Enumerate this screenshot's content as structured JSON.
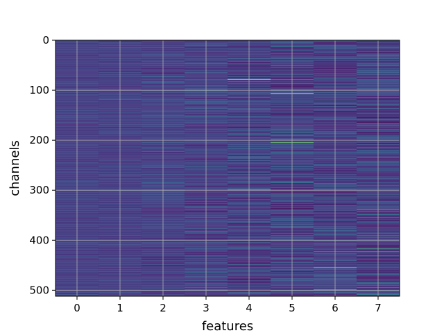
{
  "chart_data": {
    "type": "heatmap",
    "title": "",
    "xlabel": "features",
    "ylabel": "channels",
    "x_ticks": [
      0,
      1,
      2,
      3,
      4,
      5,
      6,
      7
    ],
    "y_ticks": [
      0,
      100,
      200,
      300,
      400,
      500
    ],
    "x_range": [
      -0.5,
      7.5
    ],
    "y_range": [
      0,
      512
    ],
    "y_inverted": true,
    "grid": true,
    "colormap": "viridis",
    "n_features": 8,
    "n_channels": 512,
    "feature_variation": [
      0.18,
      0.22,
      0.32,
      0.42,
      0.55,
      0.62,
      0.58,
      0.66
    ],
    "highlights": [
      {
        "feature": 4,
        "channel": 78,
        "value": 0.95
      },
      {
        "feature": 5,
        "channel": 106,
        "value": 1.0
      },
      {
        "feature": 6,
        "channel": 499,
        "value": 0.9
      },
      {
        "feature": 7,
        "channel": 0,
        "value": 0.75
      },
      {
        "feature": 5,
        "channel": 204,
        "value": 0.85
      },
      {
        "feature": 6,
        "channel": 454,
        "value": 0.8
      },
      {
        "feature": 7,
        "channel": 417,
        "value": 0.8
      },
      {
        "feature": 4,
        "channel": 298,
        "value": 0.8
      }
    ]
  }
}
